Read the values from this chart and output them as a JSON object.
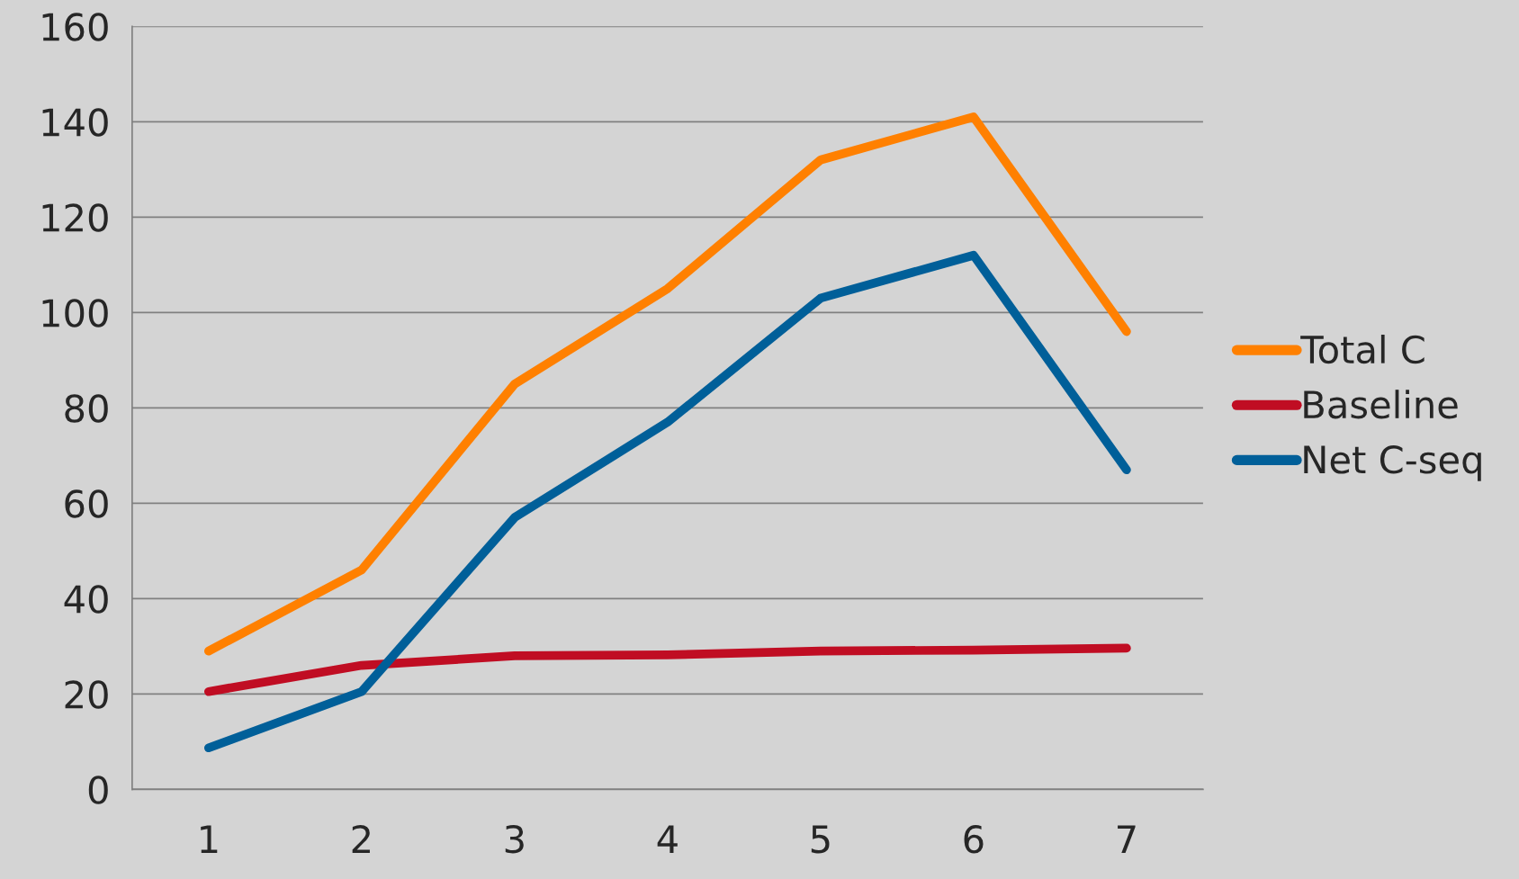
{
  "chart_data": {
    "type": "line",
    "categories": [
      "1",
      "2",
      "3",
      "4",
      "5",
      "6",
      "7"
    ],
    "series": [
      {
        "name": "Total C",
        "color": "#ff8000",
        "values": [
          29,
          46,
          85,
          105,
          132,
          141,
          96
        ]
      },
      {
        "name": "Baseline",
        "color": "#c00d23",
        "values": [
          20.5,
          26,
          28,
          28.2,
          29,
          29.2,
          29.6
        ]
      },
      {
        "name": "Net C-seq",
        "color": "#005f99",
        "values": [
          8.7,
          20.5,
          57,
          77,
          103,
          112,
          67
        ]
      }
    ],
    "ylim": [
      0,
      160
    ],
    "yticks": [
      0,
      20,
      40,
      60,
      80,
      100,
      120,
      140,
      160
    ],
    "grid": "y",
    "legend": "right",
    "marker": "none",
    "line_style": "solid"
  }
}
